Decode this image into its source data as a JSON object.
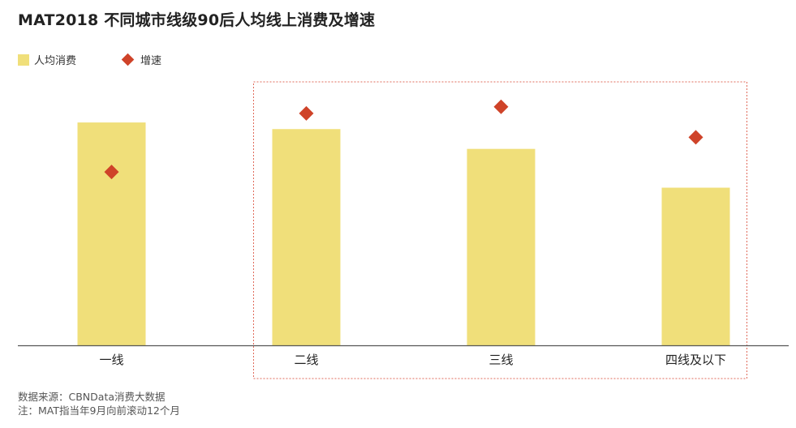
{
  "title": "MAT2018 不同城市线级90后人均线上消费及增速",
  "colors": {
    "bar": "#f0df7a",
    "diamond": "#cf4329",
    "axis": "#555555",
    "highlight_border": "#e06a5a"
  },
  "chart_data": {
    "type": "bar",
    "title": "MAT2018 不同城市线级90后人均线上消费及增速",
    "categories": [
      "一线",
      "二线",
      "三线",
      "四线及以下"
    ],
    "series": [
      {
        "name": "人均消费",
        "type": "bar",
        "values": [
          270,
          262,
          238,
          191
        ]
      },
      {
        "name": "增速",
        "type": "scatter",
        "marker": "diamond",
        "values": [
          210,
          281,
          289,
          252
        ]
      }
    ],
    "ylim": [
      0,
      330
    ],
    "y_axis_visible": false,
    "grid": false,
    "legend_position": "top-left",
    "highlight_categories": [
      "二线",
      "三线",
      "四线及以下"
    ]
  },
  "legend": [
    {
      "label": "人均消费",
      "icon": "bar-swatch"
    },
    {
      "label": "增速",
      "icon": "diamond-swatch"
    }
  ],
  "footnotes": [
    "数据来源：CBNData消费大数据",
    "注：MAT指当年9月向前滚动12个月"
  ]
}
